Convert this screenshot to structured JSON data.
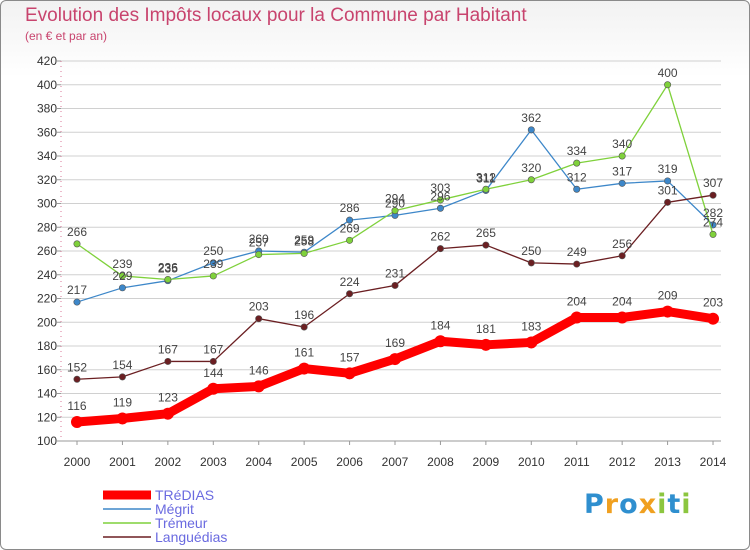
{
  "header": {
    "title": "Evolution des Impôts locaux pour la Commune par Habitant",
    "subtitle": "(en € et par an)"
  },
  "logo": {
    "text": "Proxiti",
    "colors": [
      "#2f8fcf",
      "#f0a020",
      "#8cc63f"
    ]
  },
  "chart_data": {
    "type": "line",
    "title": "Evolution des Impôts locaux pour la Commune par Habitant",
    "subtitle": "(en € et par an)",
    "xlabel": "",
    "ylabel": "",
    "ylim": [
      100,
      420
    ],
    "ytick_step": 20,
    "grid": "horizontal",
    "legend_position": "bottom-left",
    "categories": [
      "2000",
      "2001",
      "2002",
      "2003",
      "2004",
      "2005",
      "2006",
      "2007",
      "2008",
      "2009",
      "2010",
      "2011",
      "2012",
      "2013",
      "2014"
    ],
    "series": [
      {
        "name": "TRéDIAS",
        "color": "#ff0000",
        "width": "thick",
        "values": [
          116,
          119,
          123,
          144,
          146,
          161,
          157,
          169,
          184,
          181,
          183,
          204,
          204,
          209,
          203
        ]
      },
      {
        "name": "Mégrit",
        "color": "#3d87c9",
        "width": "thin",
        "values": [
          217,
          229,
          235,
          250,
          260,
          259,
          286,
          290,
          296,
          311,
          362,
          312,
          317,
          319,
          282
        ]
      },
      {
        "name": "Trémeur",
        "color": "#7fd13b",
        "width": "thin",
        "values": [
          266,
          239,
          236,
          239,
          257,
          258,
          269,
          294,
          303,
          312,
          320,
          334,
          340,
          400,
          274
        ]
      },
      {
        "name": "Languédias",
        "color": "#6b1f22",
        "width": "thin",
        "values": [
          152,
          154,
          167,
          167,
          203,
          196,
          224,
          231,
          262,
          265,
          250,
          249,
          256,
          301,
          307
        ]
      }
    ]
  }
}
